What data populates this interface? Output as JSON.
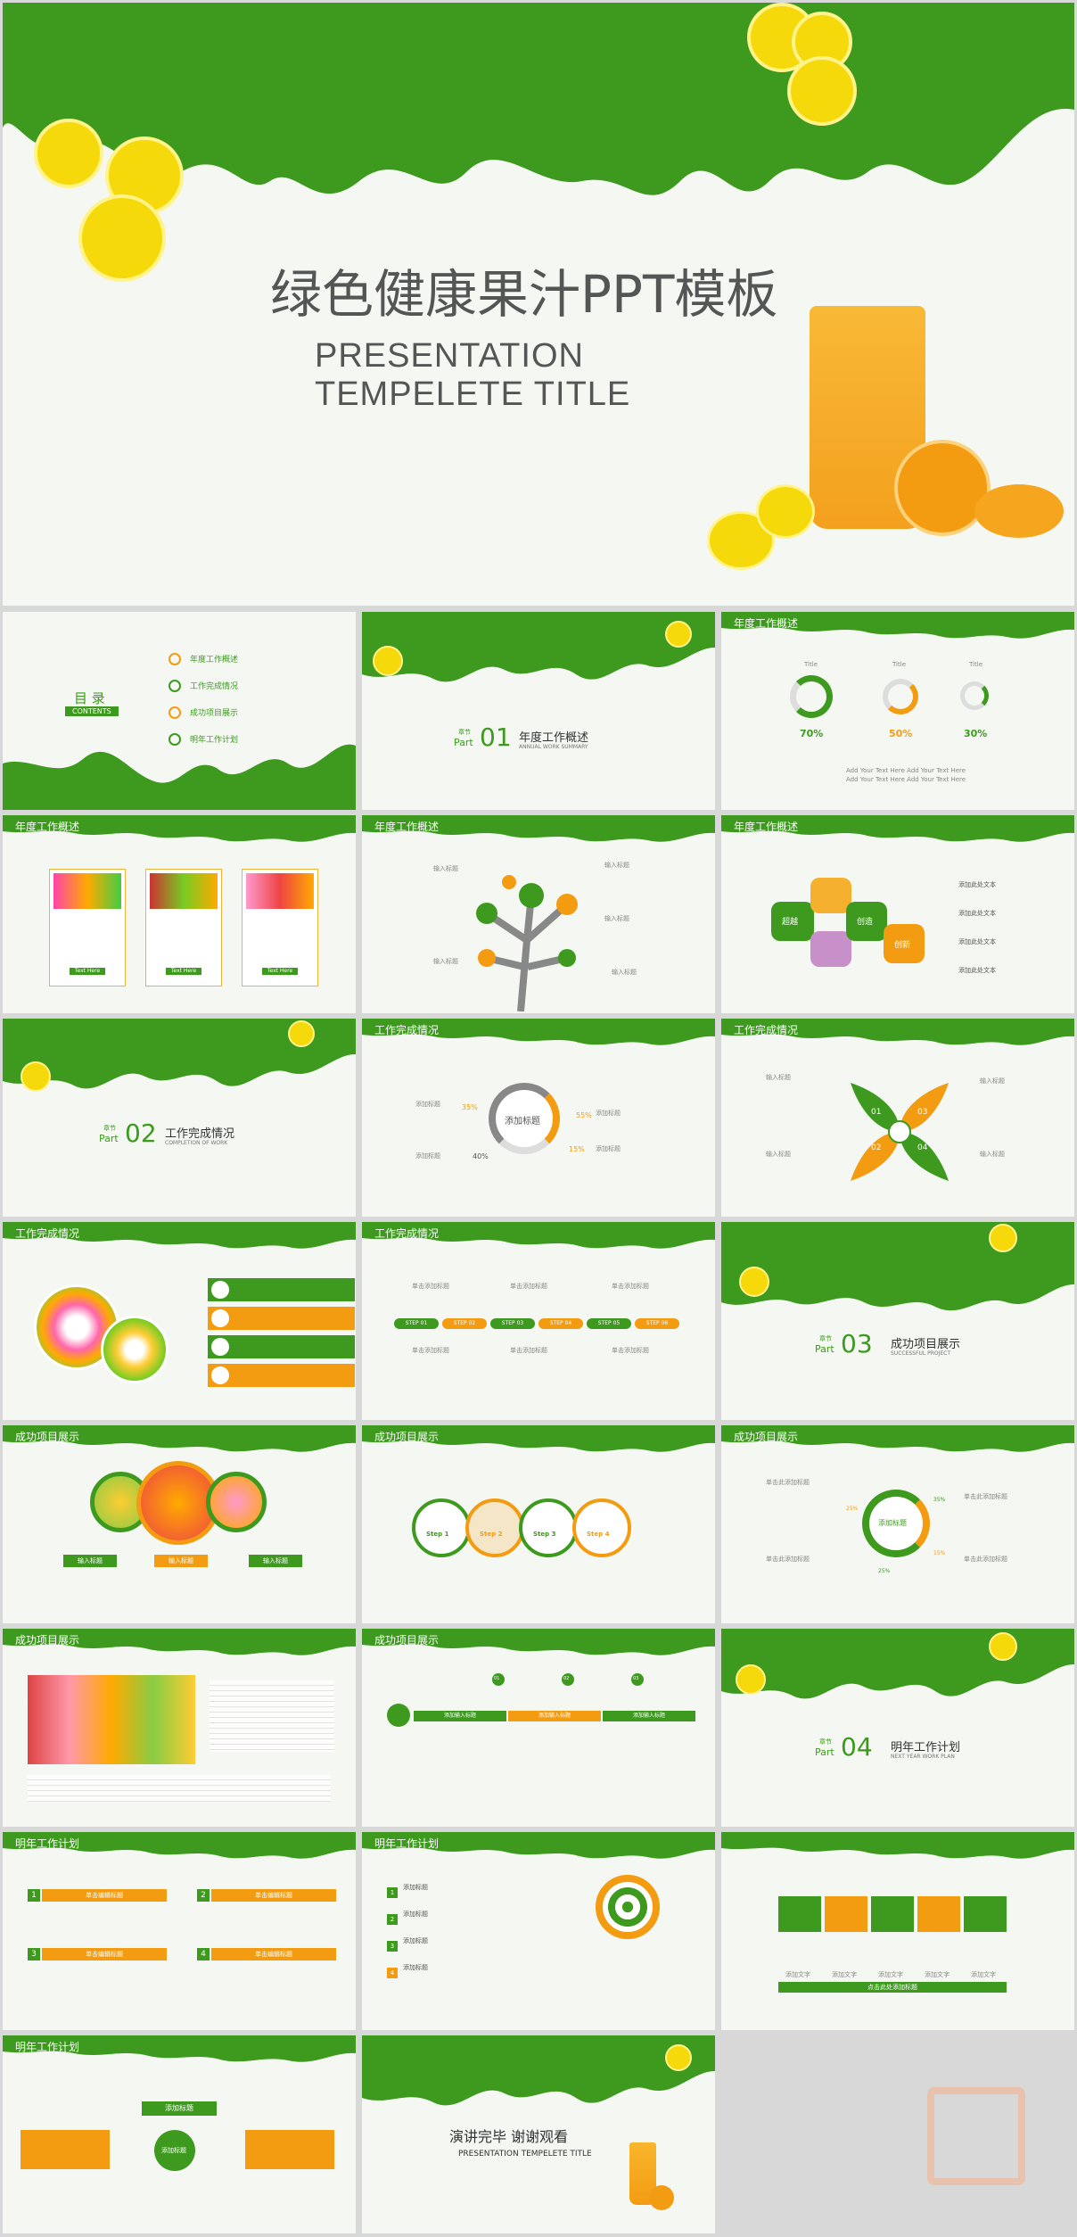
{
  "cover": {
    "title_cn": "绿色健康果汁PPT模板",
    "title_en": "PRESENTATION TEMPELETE TITLE"
  },
  "contents": {
    "heading": "目 录",
    "sub": "CONTENTS",
    "items": [
      "年度工作概述",
      "工作完成情况",
      "成功项目展示",
      "明年工作计划"
    ]
  },
  "sections": [
    {
      "label": "章节",
      "part": "Part",
      "num": "01",
      "title": "年度工作概述",
      "en": "ANNUAL WORK SUMMARY"
    },
    {
      "label": "章节",
      "part": "Part",
      "num": "02",
      "title": "工作完成情况",
      "en": "COMPLETION OF WORK"
    },
    {
      "label": "章节",
      "part": "Part",
      "num": "03",
      "title": "成功项目展示",
      "en": "SUCCESSFUL PROJECT"
    },
    {
      "label": "章节",
      "part": "Part",
      "num": "04",
      "title": "明年工作计划",
      "en": "NEXT YEAR WORK PLAN"
    }
  ],
  "headers": {
    "s1": "年度工作概述",
    "s2": "工作完成情况",
    "s3": "成功项目展示",
    "s4": "明年工作计划"
  },
  "rings": {
    "label": "Title",
    "values": [
      "70%",
      "50%",
      "30%"
    ],
    "notes": [
      "Add Your Text Here Add Your Text Here",
      "Add Your Text Here Add Your Text Here"
    ]
  },
  "cards": {
    "btn": "Text Here"
  },
  "tree": {
    "item": "输入标题"
  },
  "hex": {
    "labels": [
      "超越",
      "创造",
      "创新"
    ],
    "items": [
      "添加此处文本",
      "添加此处文本",
      "添加此处文本",
      "添加此处文本"
    ]
  },
  "donut": {
    "center": "添加标题",
    "pcts": [
      "35%",
      "55%",
      "40%",
      "15%"
    ],
    "label": "添加标题"
  },
  "clover": {
    "item": "输入标题",
    "nums": [
      "01",
      "02",
      "03",
      "04"
    ]
  },
  "steps": {
    "labels": [
      "STEP 01",
      "STEP 02",
      "STEP 03",
      "STEP 04",
      "STEP 05",
      "STEP 06"
    ],
    "item": "单击添加标题"
  },
  "circles3": {
    "labels": [
      "输入标题",
      "输入标题",
      "输入标题"
    ]
  },
  "stepflow": {
    "labels": [
      "Step 1",
      "Step 2",
      "Step 3",
      "Step 4"
    ]
  },
  "hub": {
    "center": "添加标题",
    "pcts": [
      "25%",
      "35%",
      "15%",
      "25%"
    ],
    "item": "单击此添加标题"
  },
  "timeline": {
    "tags": [
      "01",
      "02",
      "03"
    ],
    "labels": [
      "添加输入标题",
      "添加输入标题",
      "添加输入标题"
    ]
  },
  "plan4": {
    "nums": [
      "1",
      "2",
      "3",
      "4"
    ],
    "label": "单击编辑标题"
  },
  "target": {
    "nums": [
      "1",
      "2",
      "3",
      "4"
    ],
    "label": "添加标题"
  },
  "icons5": {
    "labels": [
      "添加文字",
      "添加文字",
      "添加文字",
      "添加文字",
      "添加文字"
    ],
    "footer": "点击此处添加标题"
  },
  "flow": {
    "top": "添加标题",
    "center": "添加标题"
  },
  "ending": {
    "title": "演讲完毕  谢谢观看",
    "sub": "PRESENTATION TEMPELETE TITLE"
  },
  "colors": {
    "green": "#3d9a1e",
    "orange": "#f39c12",
    "bg": "#f4f7f2"
  }
}
